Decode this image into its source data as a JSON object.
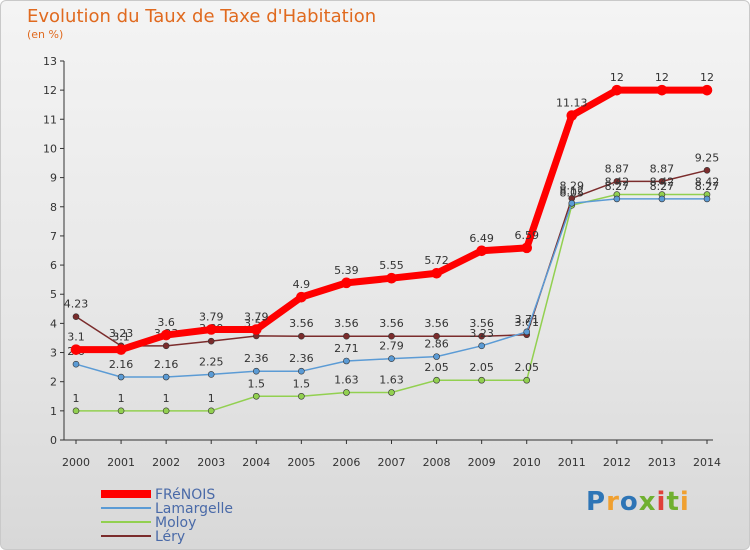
{
  "chart_data": {
    "type": "line",
    "title": "Evolution du Taux de Taxe d'Habitation",
    "subtitle": "(en %)",
    "x": [
      "2000",
      "2001",
      "2002",
      "2003",
      "2004",
      "2005",
      "2006",
      "2007",
      "2008",
      "2009",
      "2010",
      "2011",
      "2012",
      "2013",
      "2014"
    ],
    "ylim": [
      0,
      13
    ],
    "yticks": [
      0,
      1,
      2,
      3,
      4,
      5,
      6,
      7,
      8,
      9,
      10,
      11,
      12,
      13
    ],
    "grid": false,
    "legend_position": "bottom-left",
    "series": [
      {
        "name": "FRéNOIS",
        "color": "#ff0000",
        "width": 7,
        "values": [
          3.1,
          3.1,
          3.6,
          3.79,
          3.79,
          4.9,
          5.39,
          5.55,
          5.72,
          6.49,
          6.59,
          11.13,
          12,
          12,
          12
        ]
      },
      {
        "name": "Lamargelle",
        "color": "#5b9bd5",
        "width": 1.5,
        "values": [
          2.6,
          2.16,
          2.16,
          2.25,
          2.36,
          2.36,
          2.71,
          2.79,
          2.86,
          3.23,
          3.71,
          8.12,
          8.27,
          8.27,
          8.27
        ]
      },
      {
        "name": "Moloy",
        "color": "#92d050",
        "width": 1.5,
        "values": [
          1,
          1,
          1,
          1,
          1.5,
          1.5,
          1.63,
          1.63,
          2.05,
          2.05,
          2.05,
          8.05,
          8.42,
          8.42,
          8.42
        ]
      },
      {
        "name": "Léry",
        "color": "#7b2c2c",
        "width": 1.5,
        "values": [
          4.23,
          3.23,
          3.23,
          3.39,
          3.57,
          3.56,
          3.56,
          3.56,
          3.56,
          3.56,
          3.61,
          8.29,
          8.87,
          8.87,
          9.25
        ]
      }
    ]
  },
  "brand": {
    "text": "Proxiti",
    "letters": [
      "P",
      "r",
      "o",
      "x",
      "i",
      "t",
      "i"
    ],
    "colors": [
      "#2e75b6",
      "#f0a030",
      "#2e75b6",
      "#70b030",
      "#e0403a",
      "#70b030",
      "#f0a030"
    ]
  }
}
